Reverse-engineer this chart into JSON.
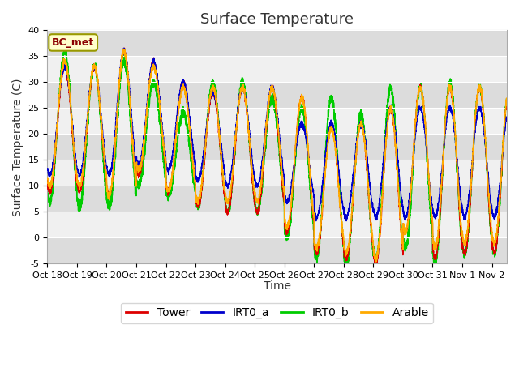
{
  "title": "Surface Temperature",
  "ylabel": "Surface Temperature (C)",
  "xlabel": "Time",
  "ylim": [
    -5,
    40
  ],
  "annotation": "BC_met",
  "x_tick_labels": [
    "Oct 18",
    "Oct 19",
    "Oct 20",
    "Oct 21",
    "Oct 22",
    "Oct 23",
    "Oct 24",
    "Oct 25",
    "Oct 26",
    "Oct 27",
    "Oct 28",
    "Oct 29",
    "Oct 30",
    "Oct 31",
    "Nov 1",
    "Nov 2"
  ],
  "legend_entries": [
    "Tower",
    "IRT0_a",
    "IRT0_b",
    "Arable"
  ],
  "line_colors": [
    "#dd0000",
    "#0000cc",
    "#00cc00",
    "#ffaa00"
  ],
  "fig_bg_color": "#ffffff",
  "plot_bg_color": "#f0f0f0",
  "grid_color": "#ffffff",
  "band_colors": [
    "#dcdcdc",
    "#f0f0f0"
  ],
  "title_fontsize": 13,
  "label_fontsize": 10,
  "tick_fontsize": 8,
  "legend_fontsize": 10,
  "yticks": [
    -5,
    0,
    5,
    10,
    15,
    20,
    25,
    30,
    35,
    40
  ],
  "day_max_temps": [
    33,
    33,
    36,
    34,
    30,
    28,
    29,
    29,
    27,
    22,
    22,
    25,
    29,
    29,
    29
  ],
  "day_min_temps": [
    9,
    9,
    8,
    12,
    9,
    6,
    5,
    5,
    1,
    -3,
    -4,
    -5,
    1,
    -4,
    -3
  ],
  "green_day_max": [
    36,
    33,
    34,
    30,
    24,
    30,
    30,
    27,
    25,
    27,
    24,
    29,
    29,
    30,
    29
  ],
  "green_day_min": [
    7,
    6,
    6,
    10,
    8,
    6,
    5,
    5,
    0,
    -4,
    -5,
    -4,
    -2,
    -5,
    -3
  ],
  "arable_day_max": [
    34,
    33,
    36,
    33,
    29,
    29,
    29,
    29,
    27,
    21,
    22,
    25,
    29,
    29,
    29
  ],
  "arable_day_min": [
    10,
    10,
    8,
    13,
    9,
    7,
    7,
    7,
    2,
    -2,
    -3,
    -4,
    1,
    -2,
    -1
  ],
  "blue_day_max": [
    33,
    33,
    36,
    34,
    30,
    28,
    29,
    29,
    22,
    22,
    22,
    25,
    25,
    25,
    25
  ],
  "blue_day_min": [
    12,
    12,
    12,
    14,
    13,
    11,
    10,
    10,
    7,
    4,
    4,
    4,
    4,
    4,
    4
  ]
}
